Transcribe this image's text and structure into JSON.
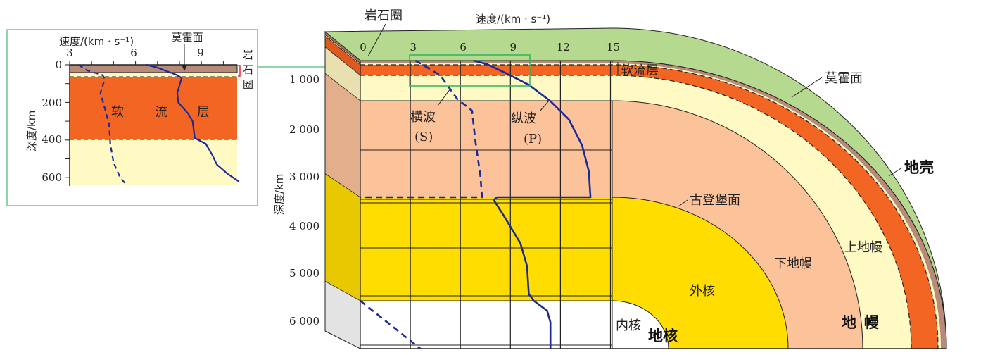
{
  "colors": {
    "crust": "#B78A7A",
    "asthenosphere": "#F26522",
    "upper_mantle": "#FFF9C4",
    "lower_mantle": "#FCC39B",
    "outer_core": "#FFDD00",
    "inner_core": "#FFFFFF",
    "top_surface": "#B5D98F",
    "wave_line": "#1A2A9A",
    "inset_frame": "#6CC98A"
  },
  "inset": {
    "x_axis_label": "速度/(km · s⁻¹)",
    "x_ticks": [
      "3",
      "6",
      "9"
    ],
    "y_axis_label": "深度/km",
    "y_ticks": [
      "0",
      "200",
      "400",
      "600"
    ],
    "moho_label": "莫霍面",
    "lithosphere_label": [
      "岩",
      "石",
      "圈"
    ],
    "asthenosphere_chars": [
      "软",
      "流",
      "层"
    ],
    "p_wave": [
      [
        6.5,
        0
      ],
      [
        7.0,
        15
      ],
      [
        7.9,
        55
      ],
      [
        8.1,
        70
      ],
      [
        7.9,
        150
      ],
      [
        7.95,
        200
      ],
      [
        8.4,
        260
      ],
      [
        8.6,
        300
      ],
      [
        8.7,
        390
      ],
      [
        9.2,
        420
      ],
      [
        9.5,
        480
      ],
      [
        9.7,
        530
      ],
      [
        10.2,
        580
      ],
      [
        10.7,
        620
      ]
    ],
    "s_wave": [
      [
        3.4,
        0
      ],
      [
        3.8,
        30
      ],
      [
        4.5,
        55
      ],
      [
        4.6,
        75
      ],
      [
        4.4,
        150
      ],
      [
        4.6,
        230
      ],
      [
        4.8,
        320
      ],
      [
        4.85,
        420
      ],
      [
        5.0,
        520
      ],
      [
        5.3,
        600
      ],
      [
        5.6,
        640
      ]
    ]
  },
  "main": {
    "title_lithosphere": "岩石圈",
    "x_axis_label": "速度/(km · s⁻¹)",
    "x_ticks": [
      "0",
      "3",
      "6",
      "9",
      "12",
      "15"
    ],
    "y_axis_label": "深度/km",
    "y_ticks": [
      "1 000",
      "2 000",
      "3 000",
      "4 000",
      "5 000",
      "6 000"
    ],
    "labels": {
      "asthenosphere": "软流层",
      "s_wave": "横波",
      "s_wave_sym": "(S)",
      "p_wave": "纵波",
      "p_wave_sym": "(P)",
      "moho": "莫霍面",
      "crust": "地壳",
      "gutenberg": "古登堡面",
      "upper_mantle": "上地幔",
      "lower_mantle": "下地幔",
      "outer_core": "外核",
      "inner_core": "内核",
      "core": "地核",
      "mantle_1": "地",
      "mantle_2": "幔"
    },
    "p_wave": [
      [
        6.8,
        0
      ],
      [
        7.6,
        60
      ],
      [
        8.8,
        350
      ],
      [
        10.1,
        500
      ],
      [
        11.4,
        680
      ],
      [
        12.5,
        1100
      ],
      [
        13.3,
        1700
      ],
      [
        13.7,
        2300
      ],
      [
        13.8,
        2900
      ],
      [
        8.2,
        2900
      ],
      [
        8.0,
        2960
      ],
      [
        8.6,
        3300
      ],
      [
        9.6,
        3900
      ],
      [
        10.0,
        4400
      ],
      [
        10.1,
        5000
      ],
      [
        10.4,
        5150
      ],
      [
        11.2,
        5400
      ],
      [
        11.4,
        5700
      ],
      [
        11.4,
        6371
      ]
    ],
    "s_wave": [
      [
        3.3,
        0
      ],
      [
        3.8,
        100
      ],
      [
        4.8,
        400
      ],
      [
        5.8,
        650
      ],
      [
        6.7,
        900
      ],
      [
        6.9,
        1600
      ],
      [
        7.2,
        2400
      ],
      [
        7.3,
        2900
      ],
      [
        0,
        2900
      ]
    ],
    "s_wave_inner": [
      [
        0,
        5150
      ],
      [
        3.6,
        6371
      ]
    ]
  }
}
